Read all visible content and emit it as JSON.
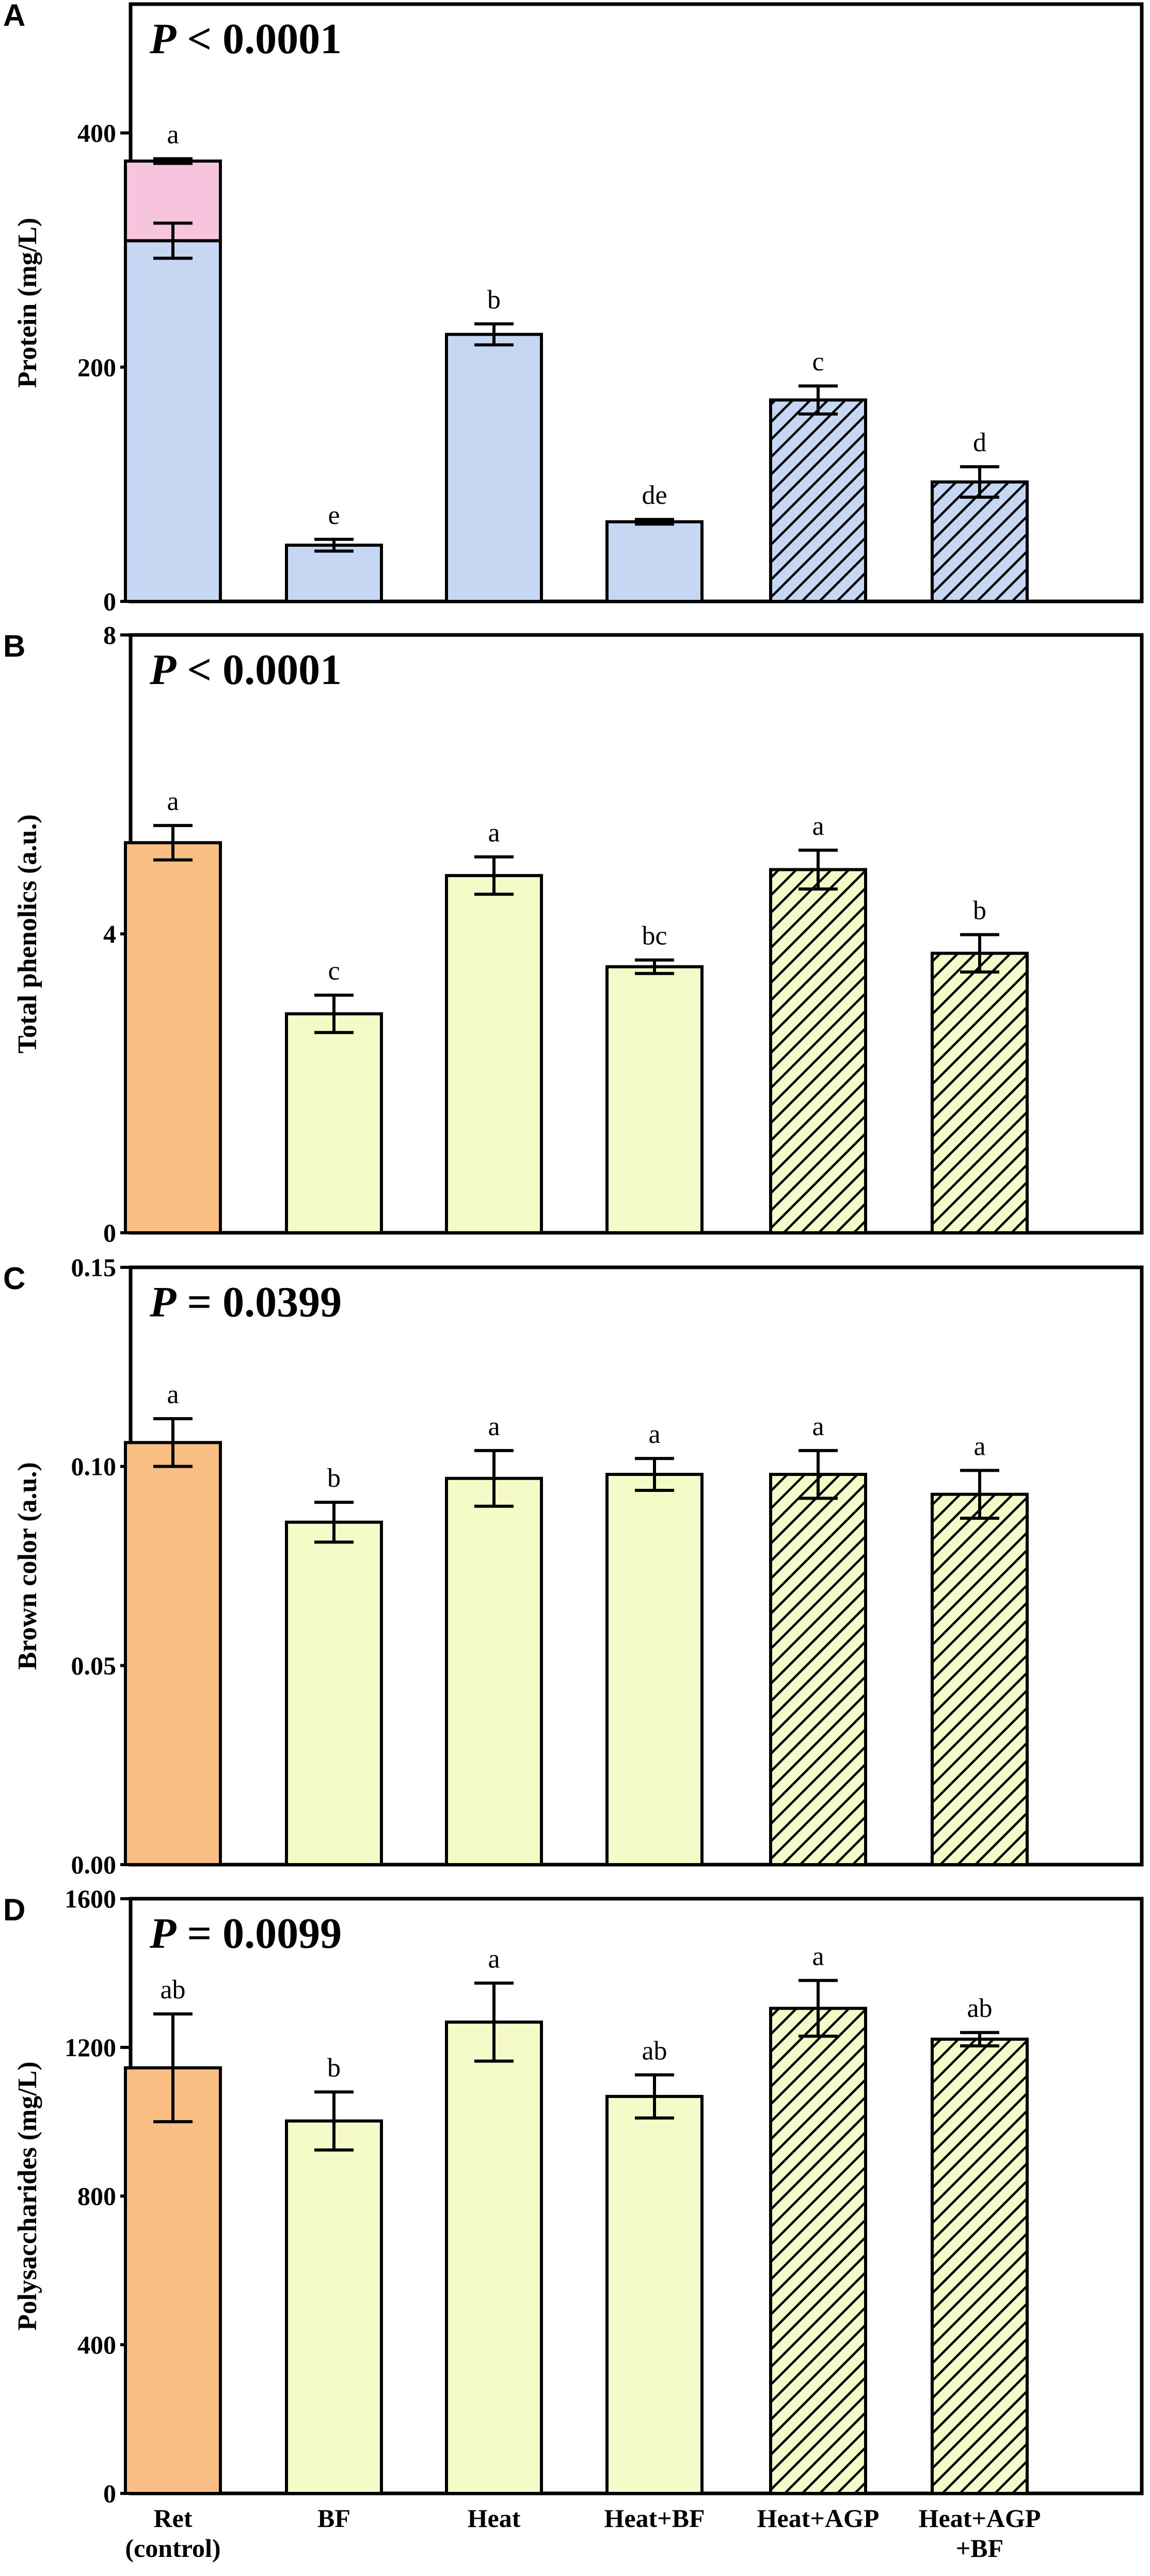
{
  "colors": {
    "protein": "#c5d7f2",
    "protein_extra": "#f7c4dd",
    "control_orange": "#f9be84",
    "yellow": "#f5fbc8",
    "stroke": "#000000"
  },
  "categories": [
    "Ret\n(control)",
    "BF",
    "Heat",
    "Heat+BF",
    "Heat+AGP",
    "Heat+AGP\n+BF"
  ],
  "chart_data": [
    {
      "panel": "A",
      "type": "bar",
      "title": "P < 0.0001",
      "p_label": "P",
      "p_rest": "< 0.0001",
      "xlabel": "",
      "ylabel": "Protein (mg/L)",
      "ylim": [
        0,
        510
      ],
      "yticks": [
        0,
        200,
        400
      ],
      "tick_labels": [
        "0",
        "200",
        "400"
      ],
      "categories": [
        "Ret (control)",
        "BF",
        "Heat",
        "Heat+BF",
        "Heat+AGP",
        "Heat+AGP +BF"
      ],
      "values": [
        308,
        48,
        228,
        68,
        172,
        102
      ],
      "errors": [
        15,
        5,
        9,
        2,
        12,
        13
      ],
      "stacked_top": [
        68,
        0,
        0,
        0,
        0,
        0
      ],
      "stacked_top_errors": [
        2,
        0,
        0,
        0,
        0,
        0
      ],
      "letters": [
        "a",
        "e",
        "b",
        "de",
        "c",
        "d"
      ],
      "fills": [
        "protein",
        "protein",
        "protein",
        "protein",
        "protein",
        "protein"
      ],
      "hatched": [
        false,
        false,
        false,
        false,
        true,
        true
      ]
    },
    {
      "panel": "B",
      "type": "bar",
      "title": "P < 0.0001",
      "p_label": "P",
      "p_rest": "< 0.0001",
      "xlabel": "",
      "ylabel": "Total phenolics (a.u.)",
      "ylim": [
        0,
        8
      ],
      "yticks": [
        0,
        4,
        8
      ],
      "tick_labels": [
        "0",
        "4",
        "8"
      ],
      "categories": [
        "Ret (control)",
        "BF",
        "Heat",
        "Heat+BF",
        "Heat+AGP",
        "Heat+AGP +BF"
      ],
      "values": [
        5.22,
        2.93,
        4.78,
        3.56,
        4.86,
        3.74
      ],
      "errors": [
        0.23,
        0.25,
        0.25,
        0.09,
        0.26,
        0.25
      ],
      "letters": [
        "a",
        "c",
        "a",
        "bc",
        "a",
        "b"
      ],
      "fills": [
        "control_orange",
        "yellow",
        "yellow",
        "yellow",
        "yellow",
        "yellow"
      ],
      "hatched": [
        false,
        false,
        false,
        false,
        true,
        true
      ]
    },
    {
      "panel": "C",
      "type": "bar",
      "title": "P = 0.0399",
      "p_label": "P",
      "p_rest": "= 0.0399",
      "xlabel": "",
      "ylabel": "Brown color (a.u.)",
      "ylim": [
        0,
        0.15
      ],
      "yticks": [
        0,
        0.05,
        0.1,
        0.15
      ],
      "tick_labels": [
        "0.00",
        "0.05",
        "0.10",
        "0.15"
      ],
      "categories": [
        "Ret (control)",
        "BF",
        "Heat",
        "Heat+BF",
        "Heat+AGP",
        "Heat+AGP +BF"
      ],
      "values": [
        0.106,
        0.086,
        0.097,
        0.098,
        0.098,
        0.093
      ],
      "errors": [
        0.006,
        0.005,
        0.007,
        0.004,
        0.006,
        0.006
      ],
      "letters": [
        "a",
        "b",
        "a",
        "a",
        "a",
        "a"
      ],
      "fills": [
        "control_orange",
        "yellow",
        "yellow",
        "yellow",
        "yellow",
        "yellow"
      ],
      "hatched": [
        false,
        false,
        false,
        false,
        true,
        true
      ]
    },
    {
      "panel": "D",
      "type": "bar",
      "title": "P = 0.0099",
      "p_label": "P",
      "p_rest": "= 0.0099",
      "xlabel": "",
      "ylabel": "Polysaccharides (mg/L)",
      "ylim": [
        0,
        1600
      ],
      "yticks": [
        0,
        400,
        800,
        1200,
        1600
      ],
      "tick_labels": [
        "0",
        "400",
        "800",
        "1200",
        "1600"
      ],
      "categories": [
        "Ret (control)",
        "BF",
        "Heat",
        "Heat+BF",
        "Heat+AGP",
        "Heat+AGP +BF"
      ],
      "values": [
        1145,
        1002,
        1268,
        1068,
        1305,
        1222
      ],
      "errors": [
        145,
        78,
        105,
        58,
        75,
        18
      ],
      "letters": [
        "ab",
        "b",
        "a",
        "ab",
        "a",
        "ab"
      ],
      "fills": [
        "control_orange",
        "yellow",
        "yellow",
        "yellow",
        "yellow",
        "yellow"
      ],
      "hatched": [
        false,
        false,
        false,
        false,
        true,
        true
      ]
    }
  ],
  "x_labels": [
    [
      "Ret",
      "(control)"
    ],
    [
      "BF"
    ],
    [
      "Heat"
    ],
    [
      "Heat+BF"
    ],
    [
      "Heat+AGP"
    ],
    [
      "Heat+AGP",
      "+BF"
    ]
  ]
}
